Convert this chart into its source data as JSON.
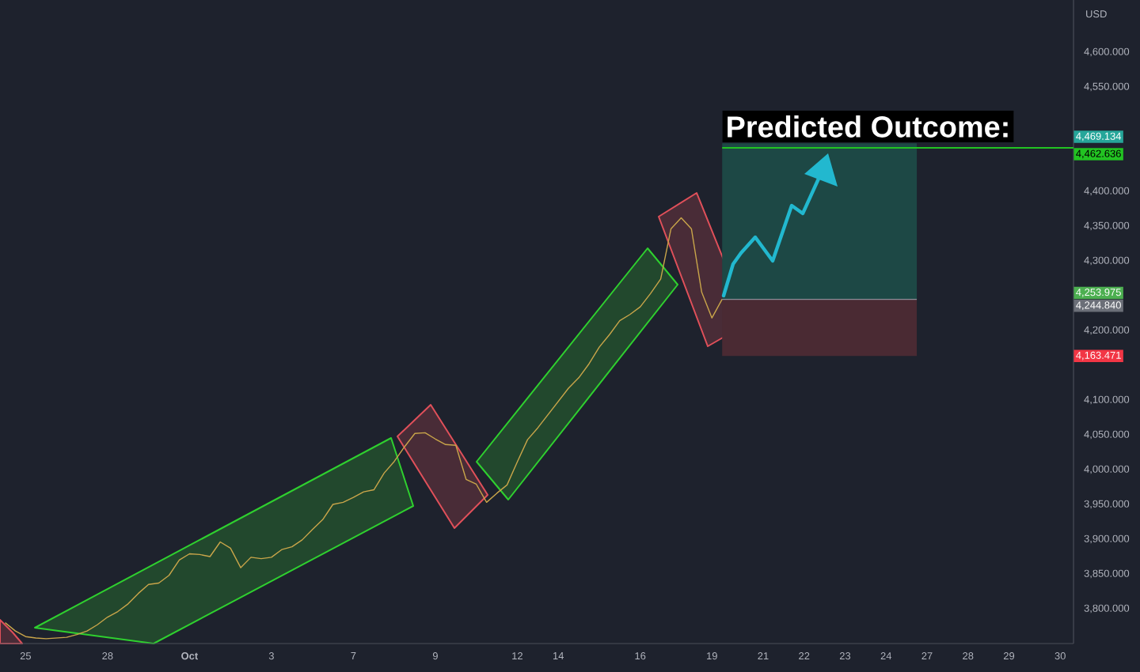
{
  "chart_data": {
    "type": "line",
    "title": "Predicted Outcome:",
    "ylabel": "USD",
    "categories": [
      null,
      null,
      "25",
      null,
      null,
      null,
      null,
      null,
      null,
      null,
      "28",
      null,
      null,
      null,
      null,
      null,
      null,
      null,
      "**Oct**",
      null,
      null,
      null,
      null,
      null,
      null,
      null,
      "3",
      null,
      null,
      null,
      null,
      null,
      null,
      null,
      "7",
      null,
      null,
      null,
      null,
      null,
      null,
      null,
      "9",
      null,
      null,
      null,
      null,
      null,
      null,
      null,
      "12",
      null,
      null,
      null,
      "14",
      null,
      null,
      null,
      null,
      null,
      null,
      null,
      "16",
      null,
      null,
      null,
      null,
      null,
      null,
      "19",
      null,
      null,
      null,
      null,
      "21",
      null,
      null,
      null,
      "22",
      null,
      null,
      null,
      "23",
      null,
      null,
      null,
      "24",
      null,
      null,
      null,
      "27",
      null,
      null,
      null,
      "28",
      null,
      null,
      null,
      "29",
      null,
      null,
      null,
      null,
      "30"
    ],
    "series": [
      {
        "color": "#c9a54a",
        "values": [
          3780,
          3768,
          3760,
          3758,
          3757,
          3758,
          3759,
          3763,
          3768,
          3777,
          3788,
          3796,
          3807,
          3822,
          3835,
          3837,
          3848,
          3870,
          3879,
          3878,
          3875,
          3896,
          3887,
          3859,
          3874,
          3872,
          3874,
          3885,
          3889,
          3899,
          3914,
          3928,
          3950,
          3953,
          3960,
          3968,
          3971,
          3995,
          4012,
          4033,
          4052,
          4053,
          4044,
          4036,
          4035,
          3986,
          3979,
          3953,
          3966,
          3978,
          4011,
          4043,
          4060,
          4079,
          4098,
          4117,
          4132,
          4152,
          4176,
          4194,
          4214,
          4223,
          4234,
          4253,
          4274,
          4346,
          4362,
          4346,
          4255,
          4218,
          4245,
          null,
          null,
          null,
          null,
          null,
          null,
          null,
          null,
          null,
          null,
          null,
          null,
          null,
          null,
          null,
          null,
          null,
          null,
          null,
          null,
          null,
          null,
          null,
          null,
          null,
          null,
          null,
          null,
          null,
          null,
          null,
          null,
          null
        ]
      }
    ],
    "ylim": [
      3750,
      4675
    ],
    "yticks": [
      {
        "value": 3800,
        "label": "3,800.000"
      },
      {
        "value": 3850,
        "label": "3,850.000"
      },
      {
        "value": 3900,
        "label": "3,900.000"
      },
      {
        "value": 3950,
        "label": "3,950.000"
      },
      {
        "value": 4000,
        "label": "4,000.000"
      },
      {
        "value": 4050,
        "label": "4,050.000"
      },
      {
        "value": 4100,
        "label": "4,100.000"
      },
      {
        "value": 4200,
        "label": "4,200.000"
      },
      {
        "value": 4300,
        "label": "4,300.000"
      },
      {
        "value": 4350,
        "label": "4,350.000"
      },
      {
        "value": 4400,
        "label": "4,400.000"
      },
      {
        "value": 4550,
        "label": "4,550.000"
      },
      {
        "value": 4600,
        "label": "4,600.000"
      }
    ],
    "bands": [
      {
        "axis": "y",
        "from": 4244.84,
        "to": 4469.134,
        "color": "#1d4845"
      },
      {
        "axis": "y",
        "from": 4163.471,
        "to": 4244.84,
        "color": "#4a2a33"
      }
    ],
    "ref_lines": [
      {
        "axis": "y",
        "value": 4462.636,
        "label": "4,462.636",
        "color": "#22c322"
      },
      {
        "axis": "y",
        "value": 4244.84,
        "color": "#8c8f99"
      }
    ],
    "annotations": [
      "4,469.134",
      "4,253.975",
      "4,244.840",
      "4,163.471"
    ]
  }
}
